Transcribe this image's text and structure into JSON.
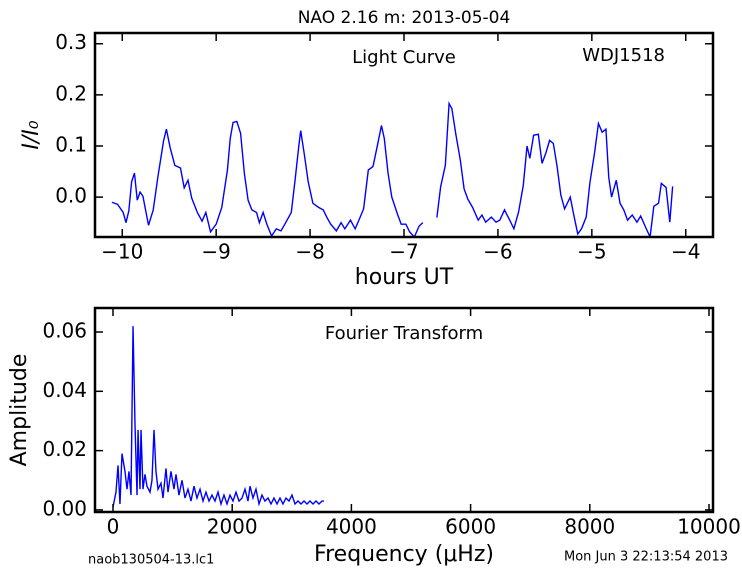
{
  "chart_data": [
    {
      "type": "line",
      "title": "NAO 2.16 m:  2013-05-04",
      "annotations": [
        "Light Curve",
        "WDJ1518"
      ],
      "xlabel": "hours UT",
      "ylabel": "I/I₀",
      "color": "#0000ff",
      "xlim": [
        -10.29,
        -3.71
      ],
      "ylim": [
        -0.078,
        0.321
      ],
      "xticks": [
        {
          "value": -10,
          "label": "−10"
        },
        {
          "value": -9,
          "label": "−9"
        },
        {
          "value": -8,
          "label": "−8"
        },
        {
          "value": -7,
          "label": "−7"
        },
        {
          "value": -6,
          "label": "−6"
        },
        {
          "value": -5,
          "label": "−5"
        },
        {
          "value": -4,
          "label": "−4"
        }
      ],
      "yticks": [
        {
          "value": 0,
          "label": "0.0"
        },
        0.1,
        0.2,
        0.3
      ],
      "x": [
        -10.11,
        -10.05,
        -9.99,
        -9.96,
        -9.93,
        -9.9,
        -9.87,
        -9.84,
        -9.81,
        -9.78,
        -9.72,
        -9.67,
        -9.62,
        -9.56,
        -9.53,
        -9.49,
        -9.44,
        -9.38,
        -9.34,
        -9.3,
        -9.26,
        -9.2,
        -9.15,
        -9.11,
        -9.06,
        -9.0,
        -8.94,
        -8.88,
        -8.85,
        -8.82,
        -8.78,
        -8.74,
        -8.7,
        -8.66,
        -8.62,
        -8.57,
        -8.54,
        -8.5,
        -8.46,
        -8.41,
        -8.36,
        -8.31,
        -8.26,
        -8.2,
        -8.16,
        -8.12,
        -8.1,
        -8.06,
        -8.02,
        -7.97,
        -7.91,
        -7.86,
        -7.82,
        -7.78,
        -7.72,
        -7.67,
        -7.63,
        -7.57,
        -7.52,
        -7.48,
        -7.43,
        -7.38,
        -7.33,
        -7.29,
        -7.24,
        -7.21,
        -7.17,
        -7.13,
        -7.07,
        -7.03,
        -6.98,
        -6.94,
        -6.89,
        -6.84,
        -6.8,
        -6.72,
        -6.65,
        -6.61,
        -6.56,
        -6.52,
        -6.49,
        -6.45,
        -6.4,
        -6.36,
        -6.32,
        -6.27,
        -6.21,
        -6.17,
        -6.13,
        -6.07,
        -6.02,
        -5.98,
        -5.93,
        -5.88,
        -5.83,
        -5.78,
        -5.73,
        -5.69,
        -5.66,
        -5.62,
        -5.57,
        -5.53,
        -5.49,
        -5.45,
        -5.41,
        -5.37,
        -5.33,
        -5.29,
        -5.23,
        -5.19,
        -5.15,
        -5.11,
        -5.06,
        -5.02,
        -4.97,
        -4.93,
        -4.89,
        -4.85,
        -4.82,
        -4.79,
        -4.74,
        -4.7,
        -4.66,
        -4.62,
        -4.57,
        -4.52,
        -4.48,
        -4.43,
        -4.38,
        -4.34,
        -4.29,
        -4.26,
        -4.21,
        -4.17,
        -4.14
      ],
      "values": [
        -0.01,
        -0.014,
        -0.03,
        -0.05,
        -0.027,
        0.03,
        0.047,
        -0.006,
        0.01,
        0.002,
        -0.055,
        -0.025,
        0.04,
        0.11,
        0.133,
        0.097,
        0.062,
        0.057,
        0.018,
        0.033,
        -0.002,
        -0.03,
        -0.047,
        -0.03,
        -0.068,
        -0.053,
        -0.02,
        0.053,
        0.115,
        0.146,
        0.148,
        0.125,
        0.047,
        -0.006,
        -0.025,
        -0.03,
        -0.05,
        -0.03,
        -0.053,
        -0.076,
        -0.062,
        -0.066,
        -0.05,
        -0.03,
        0.033,
        0.1,
        0.13,
        0.082,
        0.03,
        -0.012,
        -0.02,
        -0.025,
        -0.04,
        -0.053,
        -0.066,
        -0.05,
        -0.062,
        -0.045,
        -0.062,
        -0.045,
        -0.023,
        0.053,
        0.06,
        0.095,
        0.14,
        0.115,
        0.047,
        0.0,
        -0.033,
        -0.053,
        -0.053,
        -0.068,
        -0.078,
        -0.057,
        -0.05,
        null,
        -0.04,
        0.02,
        0.062,
        0.183,
        0.173,
        0.125,
        0.072,
        0.016,
        -0.004,
        -0.02,
        -0.045,
        -0.035,
        -0.049,
        -0.039,
        -0.049,
        -0.045,
        -0.025,
        -0.043,
        -0.062,
        -0.029,
        0.023,
        0.1,
        0.076,
        0.121,
        0.123,
        0.066,
        0.086,
        0.111,
        0.105,
        0.06,
        0.004,
        -0.023,
        0.0,
        -0.037,
        -0.072,
        -0.062,
        -0.039,
        0.029,
        0.088,
        0.144,
        0.127,
        0.133,
        0.039,
        0.0,
        0.033,
        -0.012,
        -0.025,
        -0.045,
        -0.035,
        -0.049,
        -0.037,
        -0.058,
        -0.078,
        -0.018,
        -0.012,
        0.027,
        0.019,
        -0.049,
        0.021
      ]
    },
    {
      "type": "line",
      "annotations": [
        "Fourier Transform"
      ],
      "xlabel": "Frequency (μHz)",
      "ylabel": "Amplitude",
      "color": "#0000ff",
      "xlim": [
        -302,
        10067
      ],
      "ylim": [
        -0.0007,
        0.0681
      ],
      "xticks": [
        0,
        2000,
        4000,
        6000,
        8000,
        10000
      ],
      "yticks": [
        {
          "value": 0,
          "label": "0.00"
        },
        {
          "value": 0.02,
          "label": "0.02"
        },
        {
          "value": 0.04,
          "label": "0.04"
        },
        {
          "value": 0.06,
          "label": "0.06"
        }
      ],
      "x": [
        0,
        50,
        84,
        117,
        151,
        201,
        235,
        268,
        302,
        336,
        369,
        403,
        420,
        453,
        470,
        503,
        537,
        570,
        621,
        654,
        688,
        721,
        755,
        805,
        839,
        889,
        923,
        973,
        1023,
        1057,
        1107,
        1158,
        1208,
        1258,
        1309,
        1359,
        1409,
        1460,
        1510,
        1560,
        1611,
        1661,
        1711,
        1762,
        1812,
        1862,
        1913,
        1963,
        2013,
        2064,
        2114,
        2164,
        2215,
        2265,
        2299,
        2349,
        2399,
        2450,
        2500,
        2550,
        2601,
        2651,
        2701,
        2752,
        2802,
        2852,
        2903,
        2953,
        3003,
        3054,
        3104,
        3154,
        3205,
        3255,
        3305,
        3356,
        3406,
        3456,
        3507,
        3540
      ],
      "values": [
        0.001,
        0.006,
        0.015,
        0.002,
        0.019,
        0.013,
        0.007,
        0.013,
        0.005,
        0.062,
        0.029,
        0.005,
        0.027,
        0.007,
        0.027,
        0.007,
        0.012,
        0.008,
        0.006,
        0.01,
        0.027,
        0.013,
        0.007,
        0.009,
        0.004,
        0.014,
        0.006,
        0.013,
        0.007,
        0.012,
        0.005,
        0.01,
        0.004,
        0.007,
        0.003,
        0.008,
        0.004,
        0.007,
        0.003,
        0.006,
        0.003,
        0.005,
        0.003,
        0.006,
        0.002,
        0.005,
        0.002,
        0.005,
        0.003,
        0.006,
        0.003,
        0.004,
        0.007,
        0.003,
        0.008,
        0.004,
        0.007,
        0.002,
        0.005,
        0.003,
        0.004,
        0.002,
        0.004,
        0.002,
        0.004,
        0.002,
        0.004,
        0.003,
        0.005,
        0.002,
        0.003,
        0.002,
        0.003,
        0.002,
        0.003,
        0.002,
        0.003,
        0.002,
        0.003,
        0.003
      ]
    }
  ],
  "footer": {
    "left": "naob130504-13.lc1",
    "right": "Mon Jun  3 22:13:54 2013"
  }
}
